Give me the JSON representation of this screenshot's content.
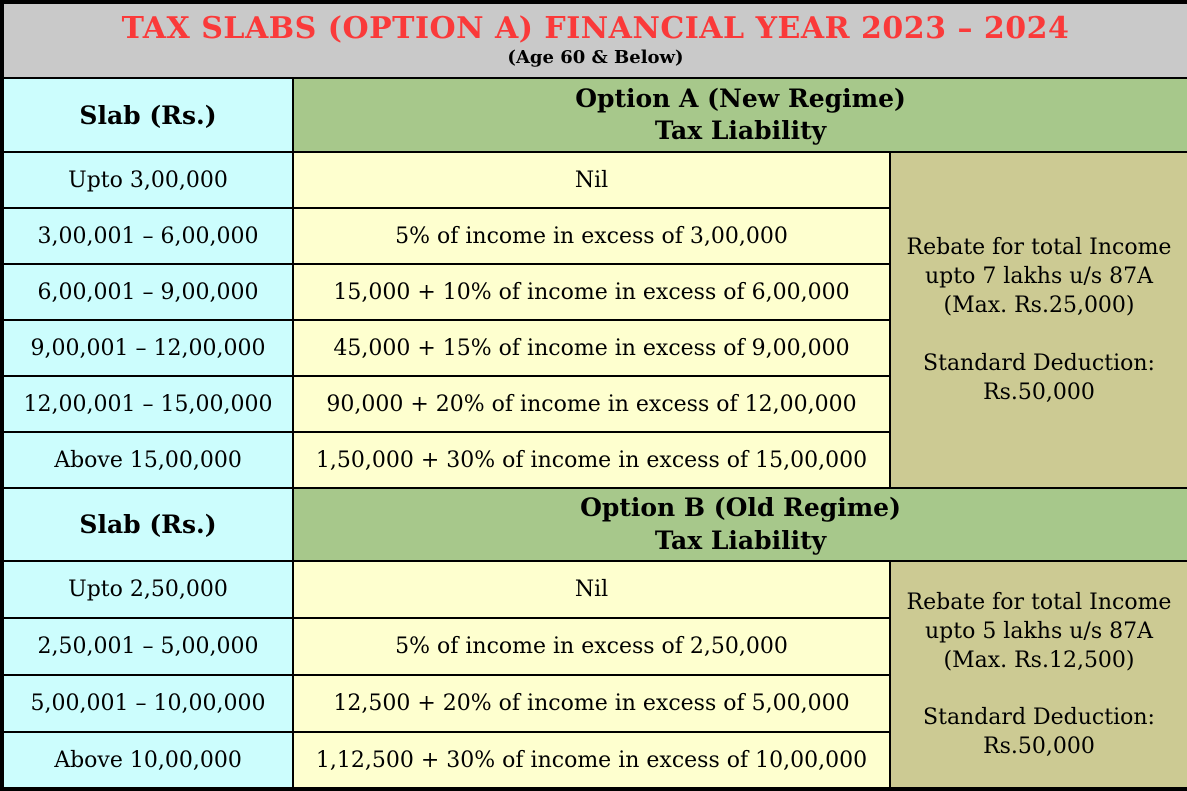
{
  "title": {
    "main": "TAX SLABS (OPTION A) FINANCIAL YEAR 2023 – 2024",
    "sub": "(Age 60 & Below)"
  },
  "colors": {
    "title_bg": "#c9c9c9",
    "title_text": "#fa3a3a",
    "header_text_blue": "#1a70c4",
    "slab_bg": "#ccfdfd",
    "liability_bg": "#feffcf",
    "header_green_bg": "#a7c88b",
    "note_olive_bg": "#ccca93",
    "border": "#000000"
  },
  "option_a": {
    "slab_header": "Slab (Rs.)",
    "header_line1": "Option A (New Regime)",
    "header_line2": "Tax Liability",
    "rows": [
      {
        "slab": "Upto 3,00,000",
        "liability": "Nil"
      },
      {
        "slab": "3,00,001 – 6,00,000",
        "liability": "5% of income in excess of 3,00,000"
      },
      {
        "slab": "6,00,001 – 9,00,000",
        "liability": "15,000 + 10% of income in excess of 6,00,000"
      },
      {
        "slab": "9,00,001 – 12,00,000",
        "liability": "45,000 + 15% of income in excess of 9,00,000"
      },
      {
        "slab": "12,00,001 – 15,00,000",
        "liability": "90,000 + 20% of income in excess of 12,00,000"
      },
      {
        "slab": "Above 15,00,000",
        "liability": "1,50,000 + 30% of income in excess of 15,00,000"
      }
    ],
    "note": {
      "rebate_lines": [
        "Rebate for total Income",
        "upto 7 lakhs u/s 87A",
        "(Max. Rs.25,000)"
      ],
      "deduction_lines": [
        "Standard Deduction:",
        "Rs.50,000"
      ]
    }
  },
  "option_b": {
    "slab_header": "Slab (Rs.)",
    "header_line1": "Option B (Old Regime)",
    "header_line2": "Tax Liability",
    "rows": [
      {
        "slab": "Upto 2,50,000",
        "liability": "Nil"
      },
      {
        "slab": "2,50,001 – 5,00,000",
        "liability": "5% of income in excess of 2,50,000"
      },
      {
        "slab": "5,00,001 – 10,00,000",
        "liability": "12,500 + 20% of income in excess of 5,00,000"
      },
      {
        "slab": "Above 10,00,000",
        "liability": "1,12,500 + 30% of income in excess of 10,00,000"
      }
    ],
    "note": {
      "rebate_lines": [
        "Rebate for total Income",
        "upto 5 lakhs u/s 87A",
        "(Max. Rs.12,500)"
      ],
      "deduction_lines": [
        "Standard Deduction:",
        "Rs.50,000"
      ]
    }
  }
}
